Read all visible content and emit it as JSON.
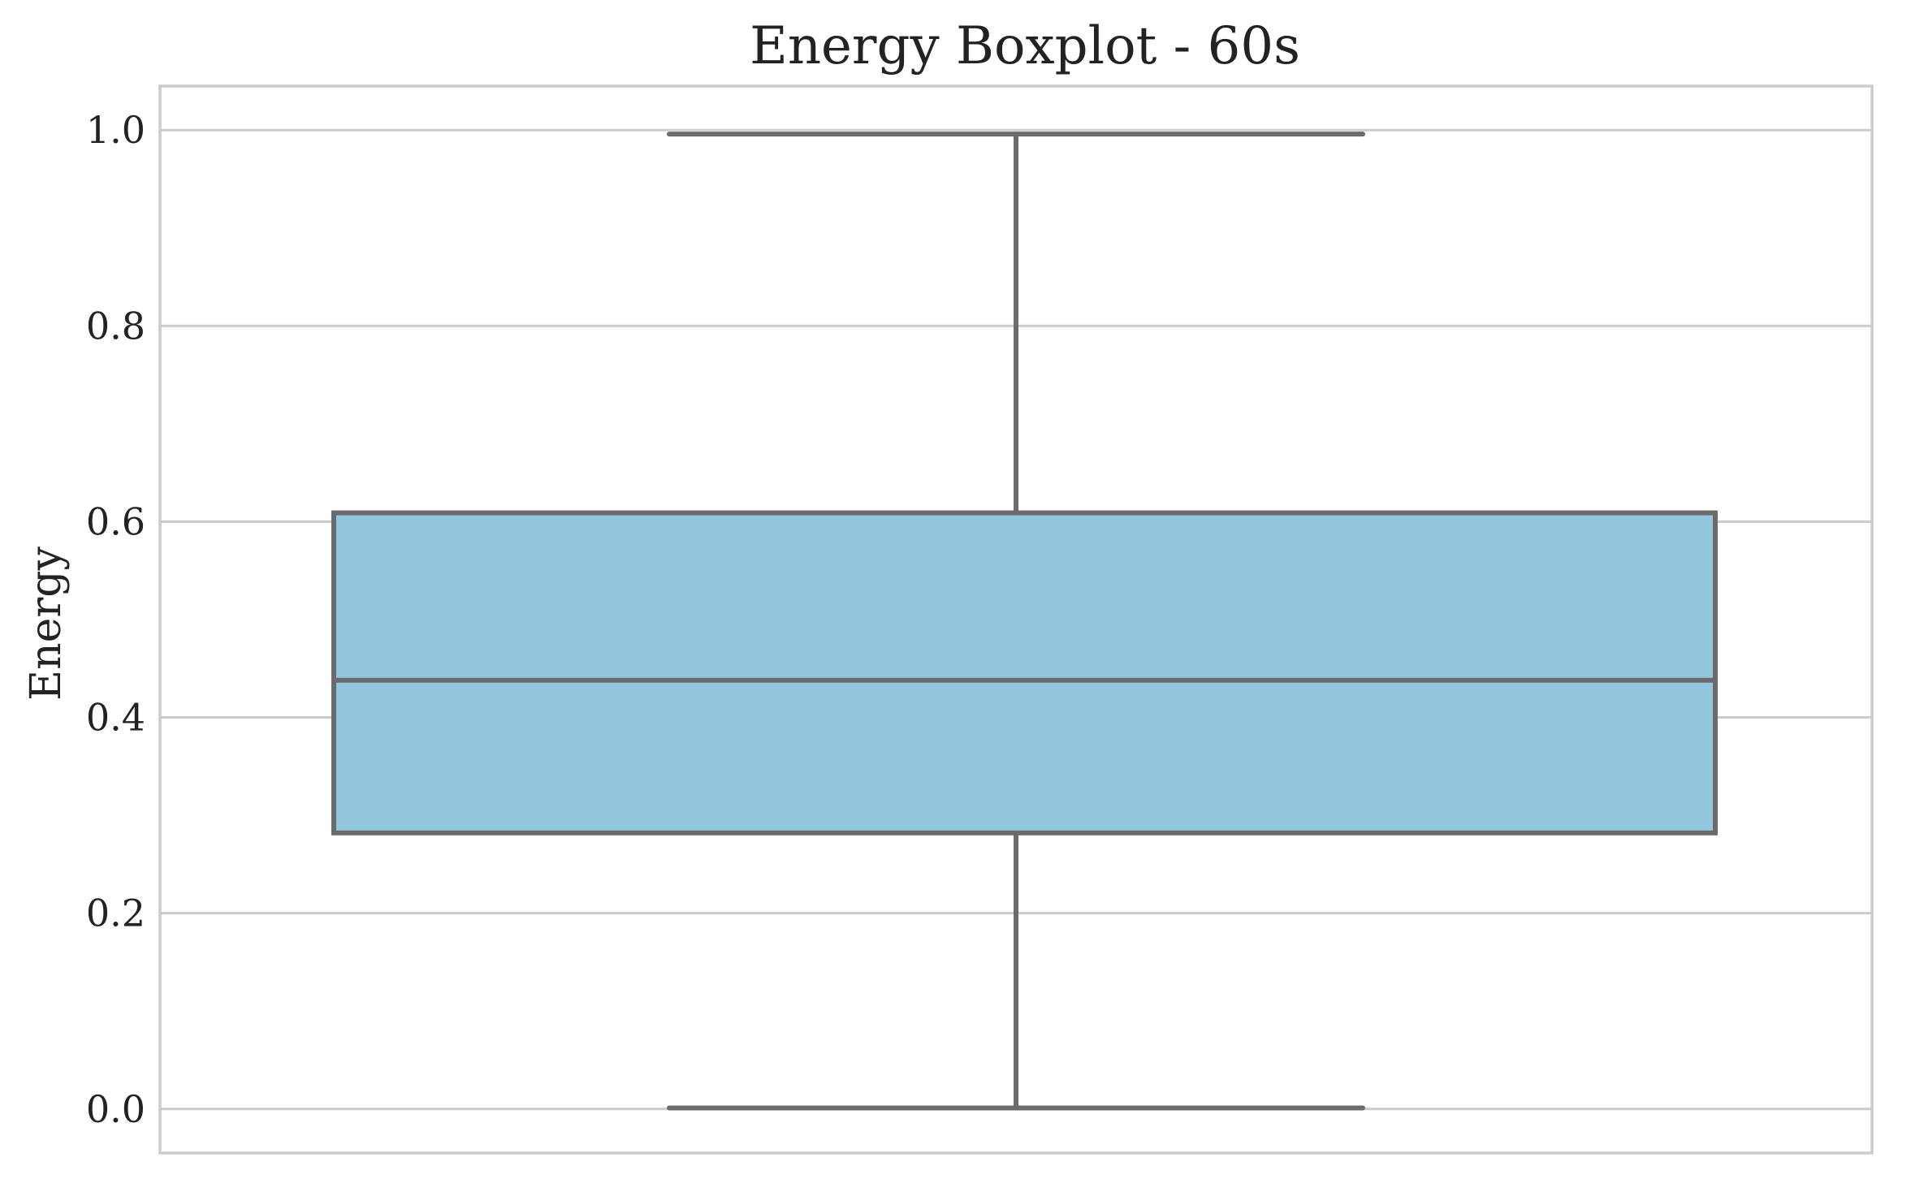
{
  "chart_data": {
    "type": "box",
    "title": "Energy Boxplot - 60s",
    "xlabel": "",
    "ylabel": "Energy",
    "ylim": [
      -0.045,
      1.045
    ],
    "yticks": [
      0.0,
      0.2,
      0.4,
      0.6,
      0.8,
      1.0
    ],
    "ytick_labels": [
      "0.0",
      "0.2",
      "0.4",
      "0.6",
      "0.8",
      "1.0"
    ],
    "grid": true,
    "legend": "none",
    "series": [
      {
        "whisker_low": 0.001,
        "q1": 0.282,
        "median": 0.438,
        "q3": 0.609,
        "whisker_high": 0.996
      }
    ],
    "colors": {
      "box_fill": "#93c7de",
      "line": "#6b6b6b",
      "grid": "#cccccc",
      "text": "#222222"
    }
  }
}
